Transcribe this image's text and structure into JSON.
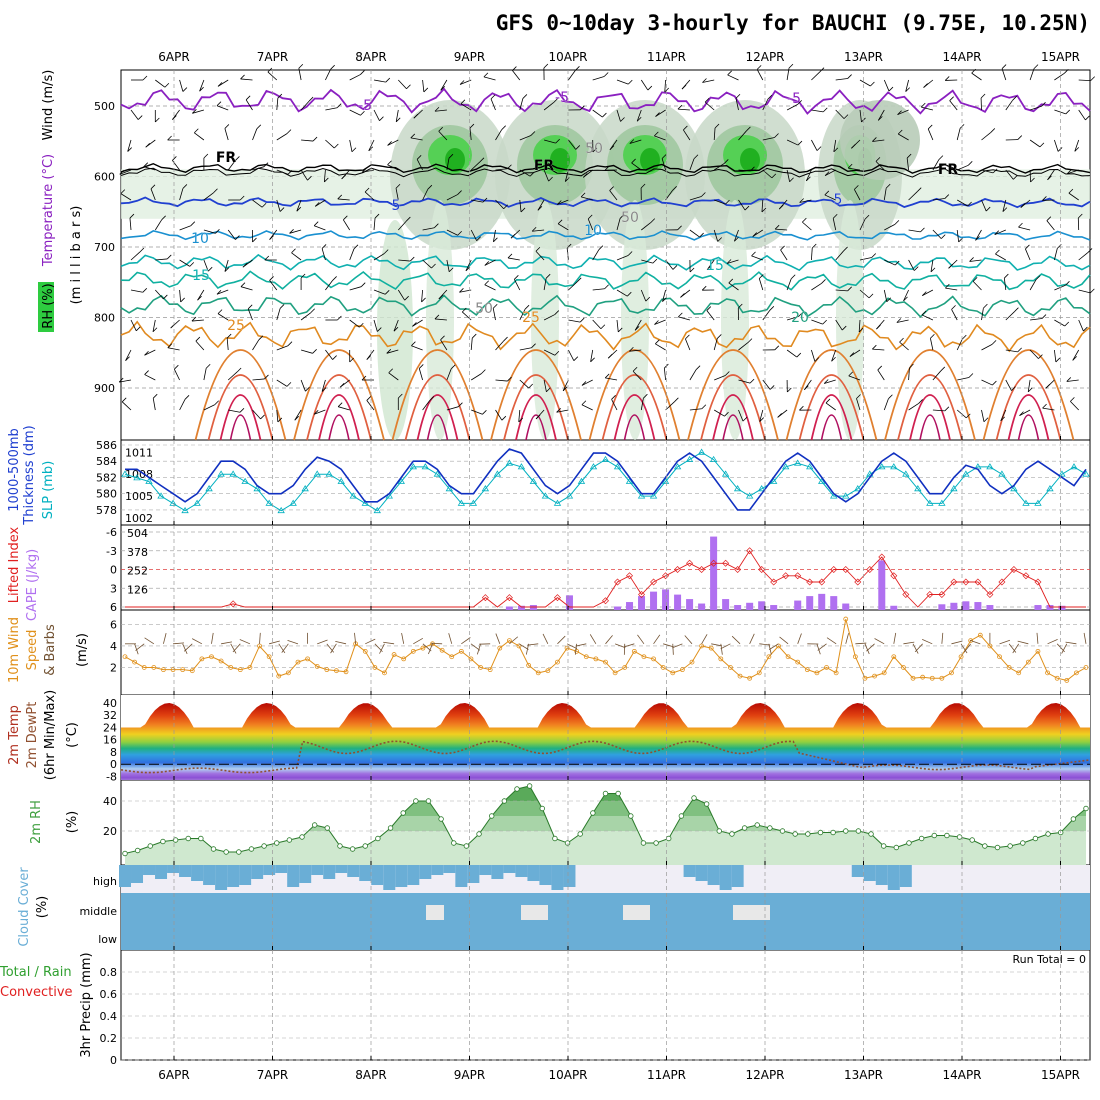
{
  "title": "GFS 0~10day 3-hourly for BAUCHI (9.75E, 10.25N)",
  "dates": [
    "6APR",
    "7APR",
    "8APR",
    "9APR",
    "10APR",
    "11APR",
    "12APR",
    "13APR",
    "14APR",
    "15APR"
  ],
  "colors": {
    "rh_green": "#2ecc40",
    "temp_purple": "#8a20c0",
    "temp_blue": "#2040d0",
    "temp_teal": "#10b0a0",
    "temp_orange": "#e08a20",
    "temp_red": "#d02030",
    "slp": "#00b0c0",
    "thick": "#1030c0",
    "li": "#e02020",
    "cape": "#b070f0",
    "wind": "#e0901a",
    "dew": "#905030",
    "cloud": "#6aaed6",
    "rh2m": "#40a040"
  },
  "panels": {
    "upper": {
      "ylabels": [
        "Wind (m/s)",
        "Temperature (°C)",
        "RH (%)",
        "(m i l l i b a r s)"
      ],
      "yticks": [
        "500",
        "600",
        "700",
        "800",
        "900"
      ],
      "contour_labels": [
        "-5",
        "-5",
        "-5",
        "FR",
        "FR",
        "FR",
        "5",
        "5",
        "10",
        "10",
        "15",
        "15",
        "20",
        "25",
        "25",
        "50",
        "50",
        "50"
      ]
    },
    "slp": {
      "ylabels": [
        "1000-500mb",
        "Thickness (dm)",
        "SLP (mb)"
      ],
      "left_ticks": [
        "586",
        "584",
        "582",
        "580",
        "578"
      ],
      "right_ticks": [
        "1011",
        "1008",
        "1005",
        "1002"
      ]
    },
    "cape": {
      "ylabels": [
        "Lifted Index",
        "CAPE (J/kg)"
      ],
      "left_ticks": [
        "-6",
        "-3",
        "0",
        "3",
        "6"
      ],
      "right_ticks": [
        "504",
        "378",
        "252",
        "126"
      ]
    },
    "wind": {
      "ylabels": [
        "10m Wind",
        "Speed",
        "& Barbs"
      ],
      "unit": "(m/s)",
      "ticks": [
        "6",
        "4",
        "2"
      ]
    },
    "temp": {
      "ylabels": [
        "2m Temp",
        "2m DewPt",
        "(6hr Min/Max)"
      ],
      "unit": "(°C)",
      "ticks": [
        "40",
        "32",
        "24",
        "16",
        "8",
        "0",
        "-8"
      ]
    },
    "rh": {
      "ylabels": [
        "2m RH"
      ],
      "unit": "(%)",
      "ticks": [
        "40",
        "20"
      ]
    },
    "cloud": {
      "ylabels": [
        "Cloud Cover"
      ],
      "unit": "(%)",
      "levels": [
        "high",
        "middle",
        "low"
      ]
    },
    "precip": {
      "ylabels": [
        "Total / Rain",
        "Convective"
      ],
      "unit": "3hr Precip (mm)",
      "ticks": [
        "0.8",
        "0.6",
        "0.4",
        "0.2",
        "0"
      ],
      "run_total": "Run Total = 0"
    }
  },
  "chart_data": [
    {
      "type": "line",
      "name": "SLP",
      "unit": "mb",
      "ylim": [
        1002,
        1012
      ],
      "values": [
        1008,
        1007.5,
        1007,
        1005,
        1004,
        1003,
        1004,
        1006,
        1008,
        1008,
        1007,
        1006,
        1004,
        1003,
        1004,
        1006,
        1008,
        1008,
        1007,
        1005,
        1004,
        1003,
        1005,
        1007,
        1009,
        1009,
        1008,
        1006,
        1004,
        1004,
        1006,
        1008,
        1009.5,
        1009,
        1007,
        1005,
        1004,
        1005,
        1007,
        1009,
        1010,
        1009,
        1007,
        1005,
        1005,
        1007,
        1009,
        1010,
        1011,
        1010,
        1008,
        1006,
        1005,
        1006,
        1007,
        1009,
        1009.5,
        1009,
        1007,
        1005,
        1005,
        1006,
        1008,
        1009,
        1009,
        1008,
        1006,
        1004,
        1004,
        1006,
        1008,
        1009,
        1009,
        1008,
        1006,
        1004,
        1004,
        1006,
        1008,
        1009,
        1008
      ]
    },
    {
      "type": "line",
      "name": "Thickness",
      "unit": "dm",
      "ylim": [
        577,
        586
      ],
      "values": [
        583,
        583,
        582,
        581,
        580,
        579,
        580,
        582,
        584,
        584,
        583,
        581,
        580,
        580,
        581,
        583,
        584.5,
        584,
        583,
        581,
        579,
        579,
        580,
        582,
        584,
        584,
        583,
        581,
        580,
        580,
        582,
        584,
        585.5,
        585,
        583,
        581,
        580,
        581,
        583,
        585,
        585,
        584,
        582,
        580,
        580,
        582,
        584,
        585,
        584,
        582,
        580,
        578,
        578,
        580,
        582,
        584,
        585,
        584,
        582,
        580,
        579,
        580,
        582,
        584,
        585,
        584,
        582,
        580,
        580,
        582,
        583.5,
        583,
        581,
        580,
        581,
        583,
        584,
        583,
        582,
        581,
        583
      ]
    },
    {
      "type": "bar",
      "name": "CAPE",
      "unit": "J/kg",
      "ylim": [
        0,
        504
      ],
      "values": [
        0,
        0,
        0,
        0,
        0,
        0,
        0,
        0,
        0,
        0,
        0,
        0,
        0,
        0,
        0,
        0,
        0,
        0,
        0,
        0,
        0,
        0,
        0,
        0,
        0,
        0,
        0,
        0,
        0,
        0,
        0,
        0,
        10,
        15,
        20,
        0,
        0,
        85,
        0,
        0,
        0,
        10,
        40,
        80,
        110,
        125,
        90,
        60,
        30,
        480,
        60,
        20,
        35,
        45,
        20,
        0,
        50,
        80,
        95,
        80,
        30,
        0,
        0,
        320,
        15,
        0,
        0,
        0,
        25,
        35,
        45,
        40,
        20,
        0,
        0,
        0,
        20,
        20,
        15,
        0,
        0
      ]
    },
    {
      "type": "line",
      "name": "Lifted Index",
      "unit": "",
      "ylim": [
        -6,
        6
      ],
      "values": [
        6,
        6,
        6,
        6,
        6,
        6,
        6,
        6,
        6,
        5.5,
        6,
        6,
        6,
        6,
        6,
        6,
        6,
        6,
        6,
        6,
        6,
        6,
        6,
        6,
        6,
        6,
        6,
        6,
        6,
        6,
        4.5,
        6,
        4.5,
        6,
        6,
        6,
        4.5,
        6,
        6,
        6,
        5,
        2,
        1,
        4,
        2,
        1,
        0,
        -1,
        0,
        -1,
        -1,
        0,
        -3,
        0,
        2,
        1,
        1,
        2,
        2,
        0,
        0,
        2,
        0,
        -2,
        1,
        4,
        6,
        4,
        4,
        2,
        2,
        2,
        4,
        2,
        0,
        1,
        2,
        6,
        6,
        6,
        6
      ]
    },
    {
      "type": "line",
      "name": "10m Wind Speed",
      "unit": "m/s",
      "ylim": [
        0,
        7
      ],
      "values": [
        3,
        2.5,
        2,
        2,
        1.8,
        1.8,
        1.8,
        1.7,
        2.8,
        3,
        2.6,
        2,
        1.8,
        2,
        4,
        3,
        1.2,
        1.5,
        2.5,
        2.8,
        2.1,
        1.8,
        1.7,
        1.6,
        4.2,
        3.5,
        2,
        1.5,
        3.2,
        2.8,
        3.5,
        3.8,
        4.2,
        3.6,
        3,
        3.5,
        2.8,
        2,
        1.8,
        3.8,
        4.5,
        4,
        2.2,
        1.5,
        1.7,
        2.5,
        3.8,
        3.5,
        3,
        2.8,
        2.5,
        1.5,
        2,
        3.5,
        3,
        2.8,
        2,
        1.5,
        1.8,
        2.5,
        4,
        3.8,
        2.8,
        2,
        1.2,
        1,
        1.5,
        3,
        4,
        3,
        2.5,
        1.8,
        1.5,
        2,
        1.5,
        6.5,
        3,
        1,
        1.2,
        1.5,
        3,
        2,
        1,
        1.1,
        1,
        1,
        1.5,
        3,
        4.5,
        5,
        4,
        3,
        2,
        1.5,
        2.5,
        3.5,
        1.5,
        1,
        0.8,
        1.5,
        2
      ]
    },
    {
      "type": "line",
      "name": "2m RH",
      "unit": "%",
      "ylim": [
        0,
        50
      ],
      "values": [
        5,
        7,
        10,
        13,
        14,
        15,
        15,
        8,
        6,
        6,
        8,
        10,
        12,
        14,
        16,
        24,
        22,
        10,
        8,
        10,
        15,
        22,
        32,
        40,
        40,
        28,
        12,
        10,
        18,
        30,
        40,
        48,
        50,
        35,
        15,
        12,
        18,
        32,
        45,
        45,
        30,
        12,
        12,
        15,
        30,
        42,
        38,
        20,
        18,
        22,
        24,
        22,
        20,
        18,
        18,
        19,
        19,
        20,
        20,
        18,
        10,
        9,
        12,
        15,
        17,
        17,
        16,
        14,
        10,
        9,
        10,
        12,
        15,
        18,
        19,
        28,
        35
      ]
    }
  ]
}
